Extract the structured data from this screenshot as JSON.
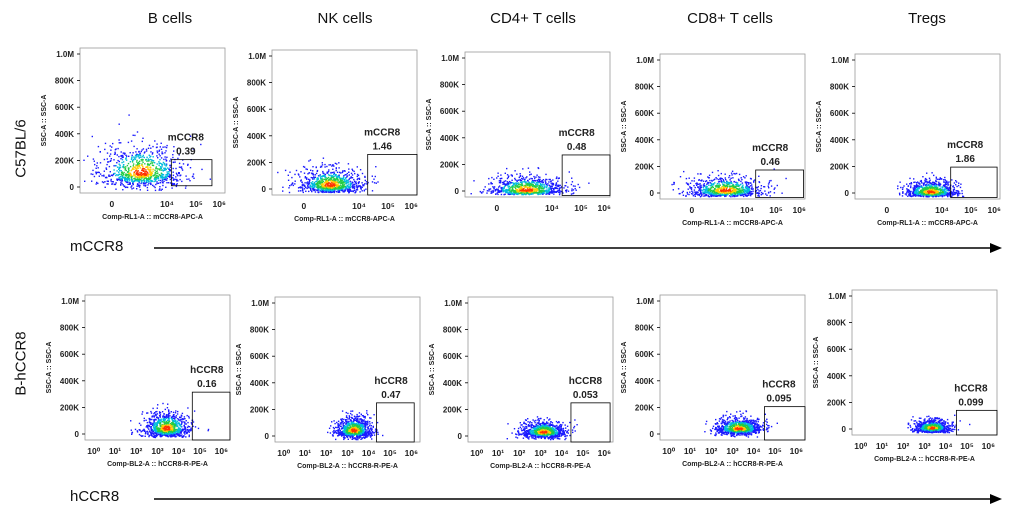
{
  "column_titles": [
    "B cells",
    "NK cells",
    "CD4+ T cells",
    "CD8+ T cells",
    "Tregs"
  ],
  "row_titles": [
    "C57BL/6",
    "B-hCCR8"
  ],
  "row_axis_labels": [
    "mCCR8",
    "hCCR8"
  ],
  "colors": {
    "density_low": "#1a1aff",
    "density_mid": "#22cc44",
    "density_high": "#ff3300",
    "axis": "#000000"
  },
  "chart_data": [
    {
      "type": "scatter",
      "row": "C57BL/6",
      "column": "B cells",
      "xlabel": "Comp-RL1-A :: mCCR8-APC-A",
      "ylabel": "SSC-A :: SSC-A",
      "ytick_labels": [
        "0",
        "200K",
        "400K",
        "600K",
        "800K",
        "1.0M"
      ],
      "xtick_labels": [
        "0",
        "10⁴",
        "10⁵",
        "10⁶"
      ],
      "gate_label": "mCCR8",
      "gate_percent": "0.39"
    },
    {
      "type": "scatter",
      "row": "C57BL/6",
      "column": "NK cells",
      "xlabel": "Comp-RL1-A :: mCCR8-APC-A",
      "ylabel": "SSC-A :: SSC-A",
      "ytick_labels": [
        "0",
        "200K",
        "400K",
        "600K",
        "800K",
        "1.0M"
      ],
      "xtick_labels": [
        "0",
        "10⁴",
        "10⁵",
        "10⁶"
      ],
      "gate_label": "mCCR8",
      "gate_percent": "1.46"
    },
    {
      "type": "scatter",
      "row": "C57BL/6",
      "column": "CD4+ T cells",
      "xlabel": "",
      "ylabel": "SSC-A :: SSC-A",
      "ytick_labels": [
        "0",
        "200K",
        "400K",
        "600K",
        "800K",
        "1.0M"
      ],
      "xtick_labels": [
        "0",
        "10⁴",
        "10⁵",
        "10⁶"
      ],
      "gate_label": "mCCR8",
      "gate_percent": "0.48"
    },
    {
      "type": "scatter",
      "row": "C57BL/6",
      "column": "CD8+ T cells",
      "xlabel": "Comp-RL1-A :: mCCR8-APC-A",
      "ylabel": "SSC-A :: SSC-A",
      "ytick_labels": [
        "0",
        "200K",
        "400K",
        "600K",
        "800K",
        "1.0M"
      ],
      "xtick_labels": [
        "0",
        "10⁴",
        "10⁵",
        "10⁶"
      ],
      "gate_label": "mCCR8",
      "gate_percent": "0.46"
    },
    {
      "type": "scatter",
      "row": "C57BL/6",
      "column": "Tregs",
      "xlabel": "Comp-RL1-A :: mCCR8-APC-A",
      "ylabel": "SSC-A :: SSC-A",
      "ytick_labels": [
        "0",
        "200K",
        "400K",
        "600K",
        "800K",
        "1.0M"
      ],
      "xtick_labels": [
        "0",
        "10⁴",
        "10⁵",
        "10⁶"
      ],
      "gate_label": "mCCR8",
      "gate_percent": "1.86"
    },
    {
      "type": "scatter",
      "row": "B-hCCR8",
      "column": "B cells",
      "xlabel": "Comp-BL2-A :: hCCR8-R-PE-A",
      "ylabel": "SSC-A :: SSC-A",
      "ytick_labels": [
        "0",
        "200K",
        "400K",
        "600K",
        "800K",
        "1.0M"
      ],
      "xtick_labels": [
        "10⁰",
        "10¹",
        "10²",
        "10³",
        "10⁴",
        "10⁵",
        "10⁶"
      ],
      "gate_label": "hCCR8",
      "gate_percent": "0.16"
    },
    {
      "type": "scatter",
      "row": "B-hCCR8",
      "column": "NK cells",
      "xlabel": "Comp-BL2-A :: hCCR8-R-PE-A",
      "ylabel": "SSC-A :: SSC-A",
      "ytick_labels": [
        "0",
        "200K",
        "400K",
        "600K",
        "800K",
        "1.0M"
      ],
      "xtick_labels": [
        "10⁰",
        "10¹",
        "10²",
        "10³",
        "10⁴",
        "10⁵",
        "10⁶"
      ],
      "gate_label": "hCCR8",
      "gate_percent": "0.47"
    },
    {
      "type": "scatter",
      "row": "B-hCCR8",
      "column": "CD4+ T cells",
      "xlabel": "Comp-BL2-A :: hCCR8-R-PE-A",
      "ylabel": "SSC-A :: SSC-A",
      "ytick_labels": [
        "0",
        "200K",
        "400K",
        "600K",
        "800K",
        "1.0M"
      ],
      "xtick_labels": [
        "10⁰",
        "10¹",
        "10²",
        "10³",
        "10⁴",
        "10⁵",
        "10⁶"
      ],
      "gate_label": "hCCR8",
      "gate_percent": "0.053"
    },
    {
      "type": "scatter",
      "row": "B-hCCR8",
      "column": "CD8+ T cells",
      "xlabel": "Comp-BL2-A :: hCCR8-R-PE-A",
      "ylabel": "SSC-A :: SSC-A",
      "ytick_labels": [
        "0",
        "200K",
        "400K",
        "600K",
        "800K",
        "1.0M"
      ],
      "xtick_labels": [
        "10⁰",
        "10¹",
        "10²",
        "10³",
        "10⁴",
        "10⁵",
        "10⁶"
      ],
      "gate_label": "hCCR8",
      "gate_percent": "0.095"
    },
    {
      "type": "scatter",
      "row": "B-hCCR8",
      "column": "Tregs",
      "xlabel": "Comp-BL2-A :: hCCR8-R-PE-A",
      "ylabel": "SSC-A :: SSC-A",
      "ytick_labels": [
        "0",
        "200K",
        "400K",
        "600K",
        "800K",
        "1.0M"
      ],
      "xtick_labels": [
        "10⁰",
        "10¹",
        "10²",
        "10³",
        "10⁴",
        "10⁵",
        "10⁶"
      ],
      "gate_label": "hCCR8",
      "gate_percent": "0.099"
    }
  ]
}
